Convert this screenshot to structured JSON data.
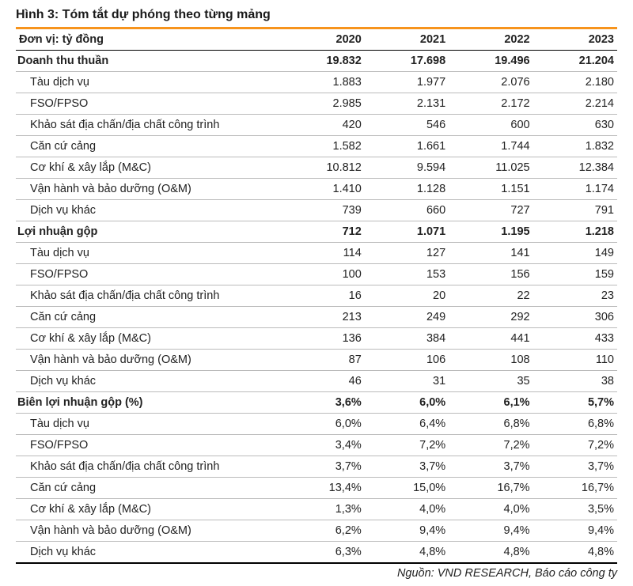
{
  "title": "Hình 3: Tóm tắt dự phóng theo từng mảng",
  "unit_label": "Đơn vị: tỷ đồng",
  "years": [
    "2020",
    "2021",
    "2022",
    "2023"
  ],
  "source": "Nguồn:   VND RESEARCH, Báo cáo công ty",
  "sections": [
    {
      "label": "Doanh thu thuần",
      "values": [
        "19.832",
        "17.698",
        "19.496",
        "21.204"
      ],
      "rows": [
        {
          "label": "Tàu dịch vụ",
          "values": [
            "1.883",
            "1.977",
            "2.076",
            "2.180"
          ]
        },
        {
          "label": "FSO/FPSO",
          "values": [
            "2.985",
            "2.131",
            "2.172",
            "2.214"
          ]
        },
        {
          "label": "Khảo sát địa chấn/địa chất công trình",
          "values": [
            "420",
            "546",
            "600",
            "630"
          ]
        },
        {
          "label": "Căn cứ cảng",
          "values": [
            "1.582",
            "1.661",
            "1.744",
            "1.832"
          ]
        },
        {
          "label": "Cơ khí & xây lắp (M&C)",
          "values": [
            "10.812",
            "9.594",
            "11.025",
            "12.384"
          ]
        },
        {
          "label": "Vận hành và bảo dưỡng (O&M)",
          "values": [
            "1.410",
            "1.128",
            "1.151",
            "1.174"
          ]
        },
        {
          "label": "Dịch vụ khác",
          "values": [
            "739",
            "660",
            "727",
            "791"
          ]
        }
      ]
    },
    {
      "label": "Lợi nhuận gộp",
      "values": [
        "712",
        "1.071",
        "1.195",
        "1.218"
      ],
      "rows": [
        {
          "label": "Tàu dịch vụ",
          "values": [
            "114",
            "127",
            "141",
            "149"
          ]
        },
        {
          "label": "FSO/FPSO",
          "values": [
            "100",
            "153",
            "156",
            "159"
          ]
        },
        {
          "label": "Khảo sát địa chấn/địa chất công trình",
          "values": [
            "16",
            "20",
            "22",
            "23"
          ]
        },
        {
          "label": "Căn cứ cảng",
          "values": [
            "213",
            "249",
            "292",
            "306"
          ]
        },
        {
          "label": "Cơ khí & xây lắp (M&C)",
          "values": [
            "136",
            "384",
            "441",
            "433"
          ]
        },
        {
          "label": "Vận hành và bảo dưỡng (O&M)",
          "values": [
            "87",
            "106",
            "108",
            "110"
          ]
        },
        {
          "label": "Dịch vụ khác",
          "values": [
            "46",
            "31",
            "35",
            "38"
          ]
        }
      ]
    },
    {
      "label": "Biên lợi nhuận gộp (%)",
      "values": [
        "3,6%",
        "6,0%",
        "6,1%",
        "5,7%"
      ],
      "rows": [
        {
          "label": "Tàu dịch vụ",
          "values": [
            "6,0%",
            "6,4%",
            "6,8%",
            "6,8%"
          ]
        },
        {
          "label": "FSO/FPSO",
          "values": [
            "3,4%",
            "7,2%",
            "7,2%",
            "7,2%"
          ]
        },
        {
          "label": "Khảo sát địa chấn/địa chất công trình",
          "values": [
            "3,7%",
            "3,7%",
            "3,7%",
            "3,7%"
          ]
        },
        {
          "label": "Căn cứ cảng",
          "values": [
            "13,4%",
            "15,0%",
            "16,7%",
            "16,7%"
          ]
        },
        {
          "label": "Cơ khí & xây lắp (M&C)",
          "values": [
            "1,3%",
            "4,0%",
            "4,0%",
            "3,5%"
          ]
        },
        {
          "label": "Vận hành và bảo dưỡng (O&M)",
          "values": [
            "6,2%",
            "9,4%",
            "9,4%",
            "9,4%"
          ]
        },
        {
          "label": "Dịch vụ khác",
          "values": [
            "6,3%",
            "4,8%",
            "4,8%",
            "4,8%"
          ]
        }
      ]
    }
  ]
}
